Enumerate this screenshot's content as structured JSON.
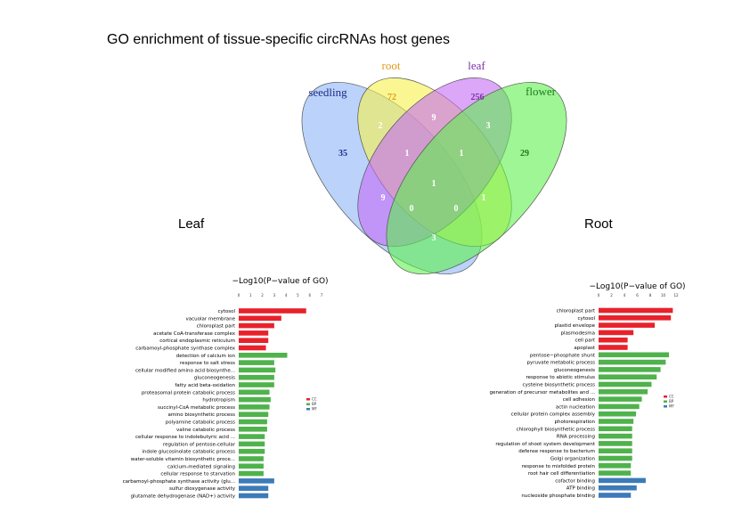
{
  "page": {
    "title": "GO enrichment of tissue-specific circRNAs host genes",
    "leaf_label": "Leaf",
    "root_label": "Root"
  },
  "colors": {
    "seedling": "#8eb5f7",
    "root": "#f7f24b",
    "leaf": "#c46af5",
    "flower": "#5ef04c",
    "CC": "#e8212b",
    "BP": "#4fb24c",
    "MF": "#3d7ab8"
  },
  "chart_data": [
    {
      "type": "venn",
      "sets": [
        {
          "name": "seedling",
          "color": "#8eb5f7",
          "label_color": "#1f2a8a"
        },
        {
          "name": "root",
          "color": "#f7f24b",
          "label_color": "#e39a16"
        },
        {
          "name": "leaf",
          "color": "#c46af5",
          "label_color": "#7b2fa8"
        },
        {
          "name": "flower",
          "color": "#5ef04c",
          "label_color": "#1f7a1f"
        }
      ],
      "regions": [
        {
          "sets": [
            "seedling"
          ],
          "count": 35,
          "color": "#1f2a8a"
        },
        {
          "sets": [
            "root"
          ],
          "count": 72,
          "color": "#e39a16"
        },
        {
          "sets": [
            "leaf"
          ],
          "count": 256,
          "color": "#7b2fa8"
        },
        {
          "sets": [
            "flower"
          ],
          "count": 29,
          "color": "#1f7a1f"
        },
        {
          "sets": [
            "seedling",
            "root"
          ],
          "count": 2,
          "color": "#ffffff"
        },
        {
          "sets": [
            "root",
            "leaf"
          ],
          "count": 9,
          "color": "#ffffff"
        },
        {
          "sets": [
            "leaf",
            "flower"
          ],
          "count": 3,
          "color": "#ffffff"
        },
        {
          "sets": [
            "seedling",
            "root",
            "leaf"
          ],
          "count": 1,
          "color": "#ffffff"
        },
        {
          "sets": [
            "root",
            "leaf",
            "flower"
          ],
          "count": 1,
          "color": "#ffffff"
        },
        {
          "sets": [
            "seedling",
            "root",
            "leaf",
            "flower"
          ],
          "count": 1,
          "color": "#ffffff"
        },
        {
          "sets": [
            "seedling",
            "leaf"
          ],
          "count": 9,
          "color": "#ffffff"
        },
        {
          "sets": [
            "root",
            "flower"
          ],
          "count": 1,
          "color": "#ffffff"
        },
        {
          "sets": [
            "seedling",
            "leaf",
            "flower"
          ],
          "count": 0,
          "color": "#ffffff"
        },
        {
          "sets": [
            "seedling",
            "root",
            "flower"
          ],
          "count": 0,
          "color": "#ffffff"
        },
        {
          "sets": [
            "seedling",
            "flower"
          ],
          "count": 3,
          "color": "#ffffff"
        }
      ]
    },
    {
      "type": "bar",
      "orientation": "horizontal",
      "panel": "Leaf",
      "xlabel": "−Log10(P−value of GO)",
      "xlim": [
        0,
        7
      ],
      "xticks": [
        0,
        1,
        2,
        3,
        4,
        5,
        6,
        7
      ],
      "legend": {
        "entries": [
          "CC",
          "BP",
          "MF"
        ],
        "placement": "right"
      },
      "categories": [
        "cytosol",
        "vacuolar membrane",
        "chloroplast part",
        "acetate CoA-transferase complex",
        "cortical endoplasmic reticulum",
        "carbamoyl-phosphate synthase complex",
        "detection of calcium ion",
        "response to salt stress",
        "cellular modified amino acid biosynthe...",
        "gluconeogenesis",
        "fatty acid beta-oxidation",
        "proteasomal protein catabolic process",
        "hydrotropism",
        "succinyl-CoA metabolic process",
        "amino biosynthetic process",
        "polyamine catabolic process",
        "valine catabolic process",
        "cellular response to indolebutyric acid ...",
        "regulation of pentose-cellular",
        "indole glucosinolate catabolic process",
        "water-soluble vitamin biosynthetic proce...",
        "calcium-mediated signaling",
        "cellular response to starvation",
        "carbamoyl-phosphate synthase activity (glu...",
        "sulfur dioxygenase activity",
        "glutamate dehydrogenase (NAD+) activity"
      ],
      "values": [
        5.7,
        3.6,
        3.0,
        2.5,
        2.5,
        2.3,
        4.1,
        3.0,
        3.1,
        3.0,
        3.0,
        2.6,
        2.7,
        2.6,
        2.5,
        2.4,
        2.4,
        2.2,
        2.2,
        2.2,
        2.1,
        2.1,
        2.1,
        3.0,
        2.5,
        2.5
      ],
      "groups": [
        "CC",
        "CC",
        "CC",
        "CC",
        "CC",
        "CC",
        "BP",
        "BP",
        "BP",
        "BP",
        "BP",
        "BP",
        "BP",
        "BP",
        "BP",
        "BP",
        "BP",
        "BP",
        "BP",
        "BP",
        "BP",
        "BP",
        "BP",
        "MF",
        "MF",
        "MF"
      ]
    },
    {
      "type": "bar",
      "orientation": "horizontal",
      "panel": "Root",
      "xlabel": "−Log10(P−value of GO)",
      "xlim": [
        0,
        12
      ],
      "xticks": [
        0,
        2,
        4,
        6,
        8,
        10,
        12
      ],
      "legend": {
        "entries": [
          "CC",
          "BP",
          "MF"
        ],
        "placement": "right"
      },
      "categories": [
        "chloroplast part",
        "cytosol",
        "plastid envelope",
        "plasmodesma",
        "cell part",
        "apoplast",
        "pentose−phosphate shunt",
        "pyruvate metabolic process",
        "gluconeogenesis",
        "response to abiotic stimulus",
        "cysteine biosynthetic process",
        "generation of precursor metabolites and ...",
        "cell adhesion",
        "actin nucleation",
        "cellular protein complex assembly",
        "photorespiration",
        "chlorophyll biosynthetic process",
        "RNA processing",
        "regulation of shoot system development",
        "defense response to bacterium",
        "Golgi organization",
        "response to misfolded protein",
        "root hair cell differentiation",
        "cofactor binding",
        "ATP binding",
        "nucleoside phosphate binding"
      ],
      "values": [
        11.5,
        11.2,
        8.7,
        5.4,
        4.5,
        4.5,
        10.9,
        10.4,
        9.6,
        9.0,
        8.2,
        7.6,
        6.7,
        6.3,
        5.8,
        5.4,
        5.2,
        5.2,
        5.2,
        5.2,
        5.2,
        5.0,
        5.0,
        7.3,
        5.9,
        5.0
      ],
      "groups": [
        "CC",
        "CC",
        "CC",
        "CC",
        "CC",
        "CC",
        "BP",
        "BP",
        "BP",
        "BP",
        "BP",
        "BP",
        "BP",
        "BP",
        "BP",
        "BP",
        "BP",
        "BP",
        "BP",
        "BP",
        "BP",
        "BP",
        "BP",
        "MF",
        "MF",
        "MF"
      ]
    }
  ]
}
